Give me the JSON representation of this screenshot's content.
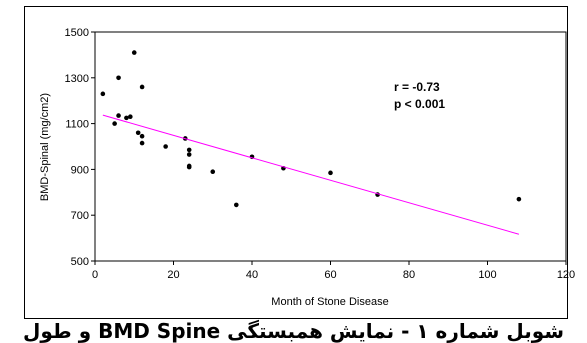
{
  "chart_data": {
    "type": "scatter",
    "xlabel": "Month of Stone Disease",
    "ylabel": "BMD-Spinal (mg/cm2)",
    "xlim": [
      0,
      120
    ],
    "ylim": [
      500,
      1500
    ],
    "xticks": [
      "0",
      "20",
      "40",
      "60",
      "80",
      "100",
      "120"
    ],
    "yticks": [
      "500",
      "700",
      "900",
      "1100",
      "1300",
      "1500"
    ],
    "grid": false,
    "legend": "none",
    "point_color": "#000000",
    "trendline_color": "#ff00ff",
    "points": [
      [
        2,
        1230
      ],
      [
        5,
        1100
      ],
      [
        6,
        1300
      ],
      [
        6,
        1135
      ],
      [
        8,
        1125
      ],
      [
        9,
        1130
      ],
      [
        10,
        1410
      ],
      [
        11,
        1060
      ],
      [
        12,
        1260
      ],
      [
        12,
        1045
      ],
      [
        12,
        1015
      ],
      [
        18,
        1000
      ],
      [
        23,
        1035
      ],
      [
        24,
        985
      ],
      [
        24,
        965
      ],
      [
        24,
        915
      ],
      [
        24,
        910
      ],
      [
        30,
        890
      ],
      [
        36,
        745
      ],
      [
        40,
        955
      ],
      [
        48,
        905
      ],
      [
        60,
        885
      ],
      [
        72,
        790
      ],
      [
        108,
        770
      ]
    ],
    "trendline": {
      "x": [
        2,
        108
      ],
      "y": [
        1137,
        617
      ]
    },
    "annotations": [
      "r = -0.73",
      "p < 0.001"
    ]
  },
  "caption": "شوبل شماره ١ - نمایش همبستگی BMD Spine و طول"
}
